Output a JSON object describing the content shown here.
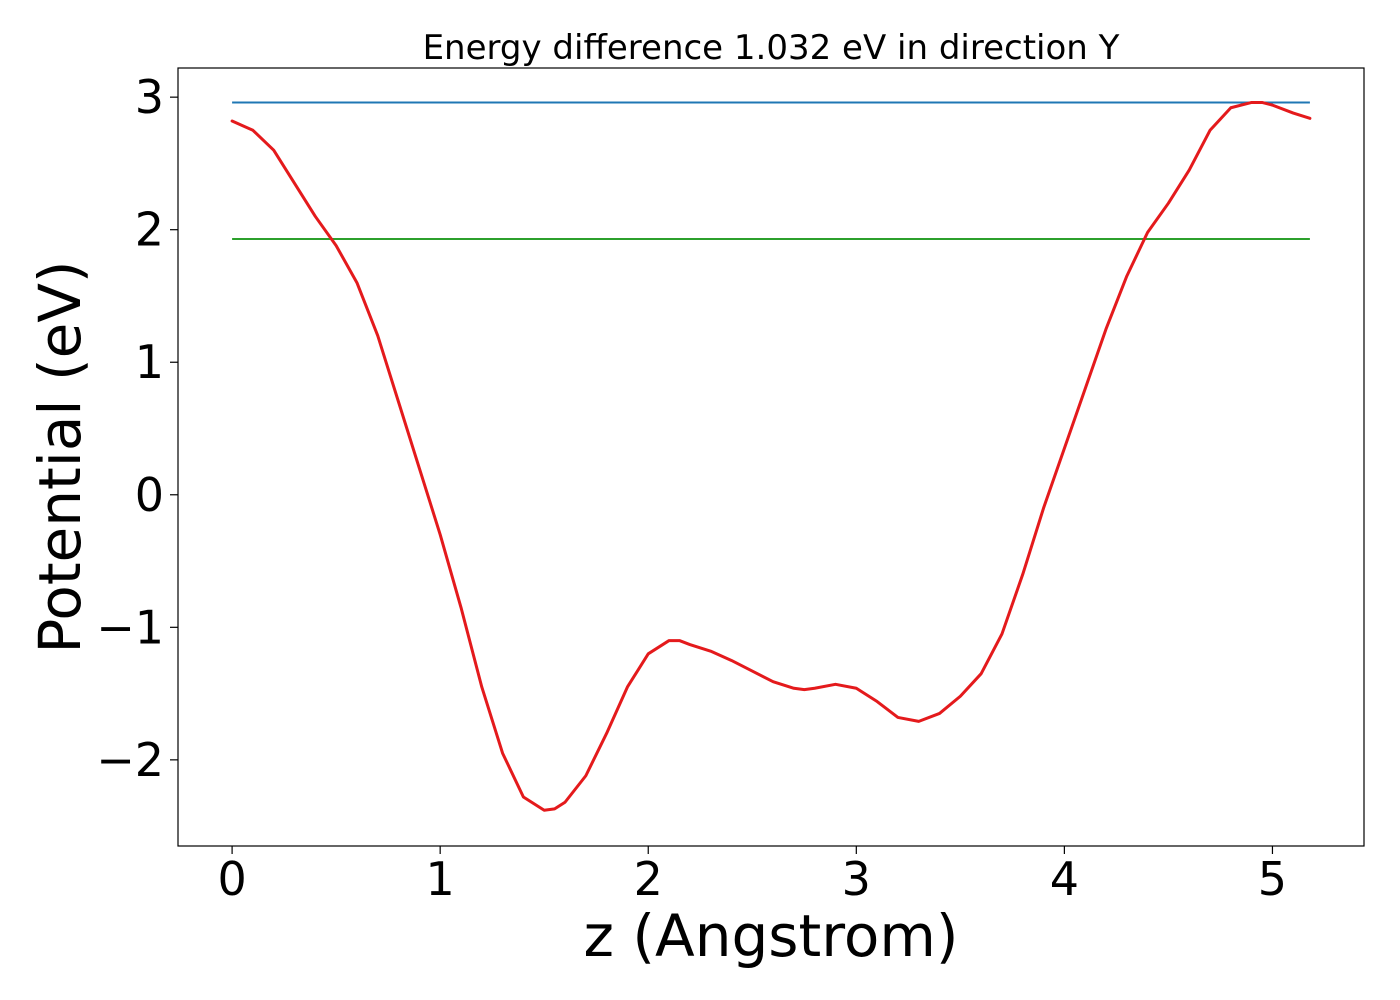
{
  "chart_data": {
    "type": "line",
    "title": "Energy difference 1.032 eV in direction Y",
    "xlabel": "z (Angstrom)",
    "ylabel": "Potential (eV)",
    "xlim": [
      -0.26,
      5.44
    ],
    "ylim": [
      -2.65,
      3.22
    ],
    "xticks": [
      0,
      1,
      2,
      3,
      4,
      5
    ],
    "yticks": [
      -2,
      -1,
      0,
      1,
      2,
      3
    ],
    "xtick_labels": [
      "0",
      "1",
      "2",
      "3",
      "4",
      "5"
    ],
    "ytick_labels": [
      "−2",
      "−1",
      "0",
      "1",
      "2",
      "3"
    ],
    "grid": false,
    "hlines": [
      {
        "y": 2.96,
        "xmin": 0,
        "xmax": 5.18,
        "color": "#1f77b4"
      },
      {
        "y": 1.93,
        "xmin": 0,
        "xmax": 5.18,
        "color": "#2ca02c"
      }
    ],
    "series": [
      {
        "color": "#e41a1c",
        "x": [
          0,
          0.1,
          0.2,
          0.3,
          0.4,
          0.5,
          0.6,
          0.7,
          0.8,
          0.9,
          1.0,
          1.1,
          1.2,
          1.3,
          1.4,
          1.5,
          1.55,
          1.6,
          1.7,
          1.8,
          1.9,
          2.0,
          2.1,
          2.15,
          2.2,
          2.3,
          2.4,
          2.5,
          2.6,
          2.7,
          2.75,
          2.8,
          2.9,
          3.0,
          3.1,
          3.2,
          3.3,
          3.4,
          3.5,
          3.6,
          3.7,
          3.8,
          3.9,
          4.0,
          4.1,
          4.2,
          4.3,
          4.4,
          4.5,
          4.6,
          4.7,
          4.8,
          4.9,
          4.95,
          5.0,
          5.1,
          5.18
        ],
        "y": [
          2.82,
          2.75,
          2.6,
          2.35,
          2.1,
          1.88,
          1.6,
          1.2,
          0.7,
          0.2,
          -0.3,
          -0.85,
          -1.45,
          -1.95,
          -2.28,
          -2.38,
          -2.37,
          -2.32,
          -2.12,
          -1.8,
          -1.45,
          -1.2,
          -1.1,
          -1.1,
          -1.13,
          -1.18,
          -1.25,
          -1.33,
          -1.41,
          -1.46,
          -1.47,
          -1.46,
          -1.43,
          -1.46,
          -1.56,
          -1.68,
          -1.71,
          -1.65,
          -1.52,
          -1.35,
          -1.05,
          -0.6,
          -0.1,
          0.35,
          0.8,
          1.25,
          1.65,
          1.98,
          2.2,
          2.45,
          2.75,
          2.92,
          2.96,
          2.96,
          2.94,
          2.88,
          2.84
        ]
      }
    ]
  }
}
